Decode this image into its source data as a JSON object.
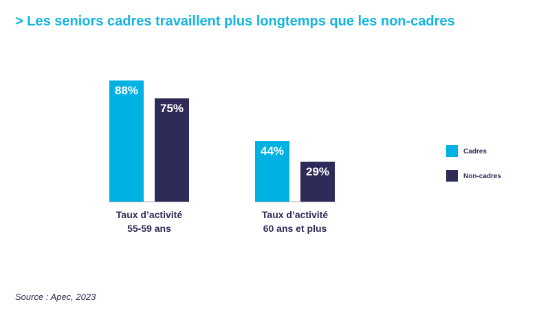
{
  "header": {
    "title_prefix": ">",
    "title": "Les seniors cadres travaillent plus longtemps que les non-cadres"
  },
  "footer": {
    "source": "Source : Apec, 2023"
  },
  "chart_data": {
    "type": "bar",
    "categories": [
      [
        "Taux d’activité",
        "55-59 ans"
      ],
      [
        "Taux d’activité",
        "60 ans et plus"
      ]
    ],
    "series": [
      {
        "name": "Cadres",
        "values": [
          88,
          44
        ],
        "labels": [
          "88%",
          "44%"
        ],
        "color": "#00b2e3"
      },
      {
        "name": "Non-cadres",
        "values": [
          75,
          29
        ],
        "labels": [
          "75%",
          "29%"
        ],
        "color": "#2e2b59"
      }
    ],
    "unit": "%",
    "ylim": [
      0,
      100
    ],
    "grid": false,
    "legend_position": "right",
    "colors": {
      "title": "#14b4e0",
      "text": "#2c2b55",
      "axis": "#9a9aa8"
    }
  }
}
